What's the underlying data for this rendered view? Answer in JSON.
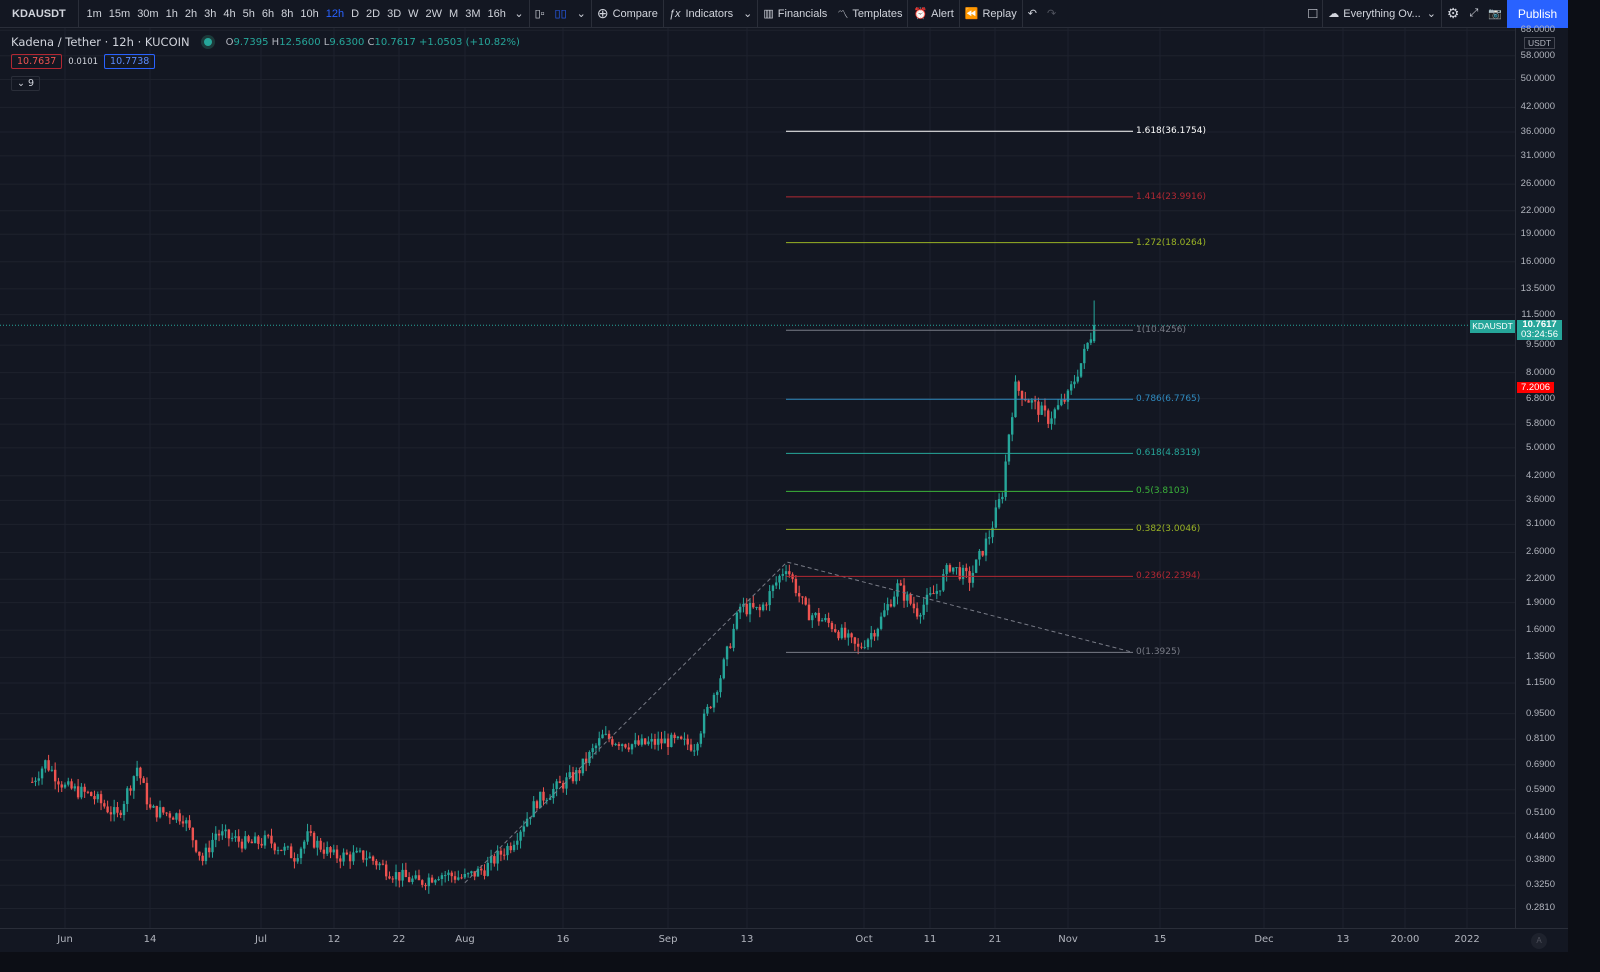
{
  "toolbar": {
    "symbol": "KDAUSDT",
    "intervals": [
      "1m",
      "15m",
      "30m",
      "1h",
      "2h",
      "3h",
      "4h",
      "5h",
      "6h",
      "8h",
      "10h",
      "12h",
      "D",
      "2D",
      "3D",
      "W",
      "2W",
      "M",
      "3M",
      "16h"
    ],
    "active_interval": "12h",
    "compare": "Compare",
    "indicators": "Indicators",
    "financials": "Financials",
    "templates": "Templates",
    "alert": "Alert",
    "replay": "Replay",
    "layout_name": "Everything Ov...",
    "publish": "Publish"
  },
  "legend": {
    "title": "Kadena / Tether · 12h · KUCOIN",
    "o_label": "O",
    "o": "9.7395",
    "h_label": "H",
    "h": "12.5600",
    "l_label": "L",
    "l": "9.6300",
    "c_label": "C",
    "c": "10.7617",
    "change": "+1.0503 (+10.82%)",
    "bid": "10.7637",
    "spread": "0.0101",
    "ask": "10.7738",
    "collapsed_count": "9"
  },
  "colors": {
    "up": "#26a69a",
    "down": "#ef5350",
    "accent": "#2962ff",
    "background": "#131722"
  },
  "price_axis": {
    "currency": "USDT",
    "ticks": [
      "68.0000",
      "58.0000",
      "50.0000",
      "42.0000",
      "36.0000",
      "31.0000",
      "26.0000",
      "22.0000",
      "19.0000",
      "16.0000",
      "13.5000",
      "11.5000",
      "9.5000",
      "8.0000",
      "6.8000",
      "5.8000",
      "5.0000",
      "4.2000",
      "3.6000",
      "3.1000",
      "2.6000",
      "2.2000",
      "1.9000",
      "1.6000",
      "1.3500",
      "1.1500",
      "0.9500",
      "0.8100",
      "0.6900",
      "0.5900",
      "0.5100",
      "0.4400",
      "0.3800",
      "0.3250",
      "0.2810"
    ],
    "last_symbol": "KDAUSDT",
    "last_price": "10.7617",
    "countdown": "03:24:56",
    "marker_price": "7.2006",
    "auto_label": "A"
  },
  "time_axis": {
    "ticks": [
      "Jun",
      "14",
      "Jul",
      "12",
      "22",
      "Aug",
      "16",
      "Sep",
      "13",
      "Oct",
      "11",
      "21",
      "Nov",
      "15",
      "Dec",
      "13",
      "20:00",
      "2022"
    ]
  },
  "chart_data": {
    "type": "candlestick",
    "scale": "log",
    "interval": "12h",
    "ylim": [
      0.26,
      68
    ],
    "approx_closes": [
      [
        "2021-05-27",
        0.62
      ],
      [
        "2021-05-29",
        0.7
      ],
      [
        "2021-06-01",
        0.6
      ],
      [
        "2021-06-05",
        0.57
      ],
      [
        "2021-06-09",
        0.5
      ],
      [
        "2021-06-12",
        0.68
      ],
      [
        "2021-06-14",
        0.52
      ],
      [
        "2021-06-19",
        0.5
      ],
      [
        "2021-06-22",
        0.38
      ],
      [
        "2021-06-24",
        0.45
      ],
      [
        "2021-06-29",
        0.42
      ],
      [
        "2021-07-02",
        0.43
      ],
      [
        "2021-07-06",
        0.39
      ],
      [
        "2021-07-08",
        0.44
      ],
      [
        "2021-07-12",
        0.39
      ],
      [
        "2021-07-17",
        0.39
      ],
      [
        "2021-07-21",
        0.35
      ],
      [
        "2021-07-25",
        0.33
      ],
      [
        "2021-07-28",
        0.35
      ],
      [
        "2021-08-01",
        0.34
      ],
      [
        "2021-08-04",
        0.36
      ],
      [
        "2021-08-08",
        0.42
      ],
      [
        "2021-08-12",
        0.55
      ],
      [
        "2021-08-18",
        0.65
      ],
      [
        "2021-08-22",
        0.82
      ],
      [
        "2021-08-27",
        0.78
      ],
      [
        "2021-09-01",
        0.8
      ],
      [
        "2021-09-05",
        0.78
      ],
      [
        "2021-09-09",
        1.2
      ],
      [
        "2021-09-12",
        1.85
      ],
      [
        "2021-09-15",
        1.8
      ],
      [
        "2021-09-19",
        2.4
      ],
      [
        "2021-09-22",
        1.8
      ],
      [
        "2021-09-26",
        1.65
      ],
      [
        "2021-09-30",
        1.42
      ],
      [
        "2021-10-03",
        1.65
      ],
      [
        "2021-10-06",
        2.1
      ],
      [
        "2021-10-09",
        1.8
      ],
      [
        "2021-10-12",
        2.05
      ],
      [
        "2021-10-14",
        2.4
      ],
      [
        "2021-10-17",
        2.2
      ],
      [
        "2021-10-20",
        2.9
      ],
      [
        "2021-10-22",
        3.8
      ],
      [
        "2021-10-23",
        5.5
      ],
      [
        "2021-10-24",
        7.3
      ],
      [
        "2021-10-27",
        6.5
      ],
      [
        "2021-10-29",
        6.0
      ],
      [
        "2021-11-01",
        6.9
      ],
      [
        "2021-11-03",
        8.5
      ],
      [
        "2021-11-05",
        10.76
      ]
    ]
  },
  "fib": {
    "levels": [
      {
        "label": "1.618(36.1754)",
        "price": 36.1754,
        "color": "#ffffff"
      },
      {
        "label": "1.414(23.9916)",
        "price": 23.9916,
        "color": "#b22833"
      },
      {
        "label": "1.272(18.0264)",
        "price": 18.0264,
        "color": "#9ab325"
      },
      {
        "label": "1(10.4256)",
        "price": 10.4256,
        "color": "#787b86"
      },
      {
        "label": "0.786(6.7765)",
        "price": 6.7765,
        "color": "#2f8bc0"
      },
      {
        "label": "0.618(4.8319)",
        "price": 4.8319,
        "color": "#26a69a"
      },
      {
        "label": "0.5(3.8103)",
        "price": 3.8103,
        "color": "#3bb33a"
      },
      {
        "label": "0.382(3.0046)",
        "price": 3.0046,
        "color": "#9ab325"
      },
      {
        "label": "0.236(2.2394)",
        "price": 2.2394,
        "color": "#b22833"
      },
      {
        "label": "0(1.3925)",
        "price": 1.3925,
        "color": "#787b86"
      }
    ]
  }
}
